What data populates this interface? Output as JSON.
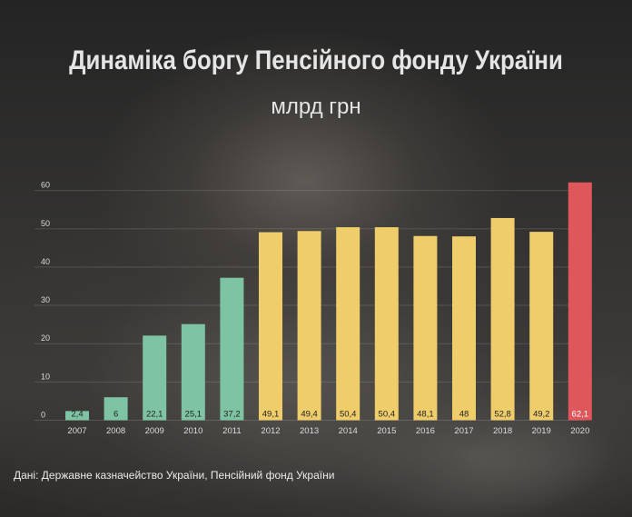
{
  "title": "Динаміка боргу Пенсійного фонду України",
  "subtitle": "млрд грн",
  "source": "Дані: Державне казначейство України, Пенсійний фонд України",
  "colors": {
    "green": "#7ec4a4",
    "yellow": "#efcd6b",
    "red": "#e0575b",
    "grid": "rgba(255,255,255,0.14)"
  },
  "chart_data": {
    "type": "bar",
    "categories": [
      "2007",
      "2008",
      "2009",
      "2010",
      "2011",
      "2012",
      "2013",
      "2014",
      "2015",
      "2016",
      "2017",
      "2018",
      "2019",
      "2020"
    ],
    "values": [
      2.4,
      6,
      22.1,
      25.1,
      37.2,
      49.1,
      49.4,
      50.4,
      50.4,
      48.1,
      48,
      52.8,
      49.2,
      62.1
    ],
    "value_labels": [
      "2,4",
      "6",
      "22,1",
      "25,1",
      "37,2",
      "49,1",
      "49,4",
      "50,4",
      "50,4",
      "48,1",
      "48",
      "52,8",
      "49,2",
      "62,1"
    ],
    "bar_colors": [
      "green",
      "green",
      "green",
      "green",
      "green",
      "yellow",
      "yellow",
      "yellow",
      "yellow",
      "yellow",
      "yellow",
      "yellow",
      "yellow",
      "red"
    ],
    "yticks": [
      0,
      10,
      20,
      30,
      40,
      50,
      60
    ],
    "ylim": [
      0,
      62.1
    ],
    "grid": true,
    "xlabel": "",
    "ylabel": ""
  }
}
